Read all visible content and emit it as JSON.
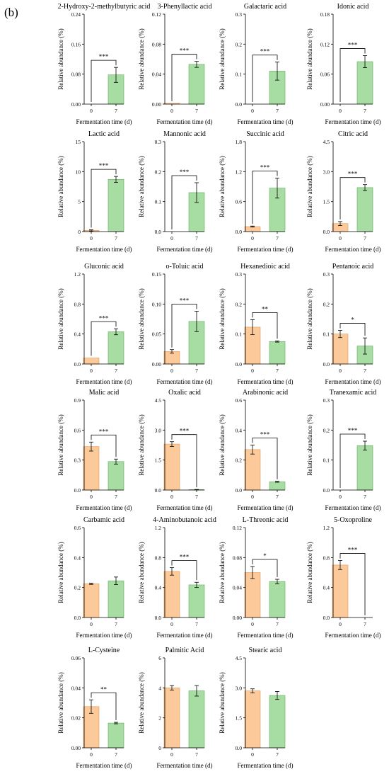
{
  "panel_label": "(b)",
  "colors": {
    "day0": "#fbc99a",
    "day7": "#a7dca3",
    "day0_edge": "#e59a59",
    "day7_edge": "#5fae5b",
    "axis": "#000000"
  },
  "chart_data": [
    {
      "type": "bar",
      "title": "2-Hydroxy-2-methylbutyric acid",
      "categories": [
        "0",
        "7"
      ],
      "values": [
        0,
        0.078
      ],
      "errors": [
        0,
        0.02
      ],
      "ylim": [
        0,
        0.24
      ],
      "yticks": [
        "0.00",
        "0.08",
        "0.16",
        "0.24"
      ],
      "significance": "***",
      "xlabel": "Fermentation time (d)",
      "ylabel": "Relative abundance (%)"
    },
    {
      "type": "bar",
      "title": "3-Phenyllactic acid",
      "categories": [
        "0",
        "7"
      ],
      "values": [
        0.001,
        0.053
      ],
      "errors": [
        0,
        0.004
      ],
      "ylim": [
        0,
        0.12
      ],
      "yticks": [
        "0.00",
        "0.04",
        "0.08",
        "0.12"
      ],
      "significance": "***",
      "xlabel": "Fermentation time (d)",
      "ylabel": "Relative abundance (%)"
    },
    {
      "type": "bar",
      "title": "Galactaric acid",
      "categories": [
        "0",
        "7"
      ],
      "values": [
        0,
        0.11
      ],
      "errors": [
        0,
        0.03
      ],
      "ylim": [
        0,
        0.3
      ],
      "yticks": [
        "0.0",
        "0.1",
        "0.2",
        "0.3"
      ],
      "significance": "***",
      "xlabel": "Fermentation time (d)",
      "ylabel": "Relative abundance (%)"
    },
    {
      "type": "bar",
      "title": "Idonic acid",
      "categories": [
        "0",
        "7"
      ],
      "values": [
        0,
        0.085
      ],
      "errors": [
        0,
        0.012
      ],
      "ylim": [
        0,
        0.18
      ],
      "yticks": [
        "0.00",
        "0.06",
        "0.12",
        "0.18"
      ],
      "significance": "***",
      "xlabel": "Fermentation time (d)",
      "ylabel": "Relative abundance (%)"
    },
    {
      "type": "bar",
      "title": "Lactic acid",
      "categories": [
        "0",
        "7"
      ],
      "values": [
        0.2,
        8.7
      ],
      "errors": [
        0.1,
        0.5
      ],
      "ylim": [
        0,
        15
      ],
      "yticks": [
        "0",
        "5",
        "10",
        "15"
      ],
      "significance": "***",
      "xlabel": "Fermentation time (d)",
      "ylabel": "Relative abundance (%)"
    },
    {
      "type": "bar",
      "title": "Mannonic acid",
      "categories": [
        "0",
        "7"
      ],
      "values": [
        0,
        0.13
      ],
      "errors": [
        0,
        0.033
      ],
      "ylim": [
        0,
        0.3
      ],
      "yticks": [
        "0.0",
        "0.1",
        "0.2",
        "0.3"
      ],
      "significance": "***",
      "xlabel": "Fermentation time (d)",
      "ylabel": "Relative abundance (%)"
    },
    {
      "type": "bar",
      "title": "Succinic acid",
      "categories": [
        "0",
        "7"
      ],
      "values": [
        0.1,
        0.87
      ],
      "errors": [
        0.01,
        0.2
      ],
      "ylim": [
        0,
        1.8
      ],
      "yticks": [
        "0.0",
        "0.6",
        "1.2",
        "1.8"
      ],
      "significance": "***",
      "xlabel": "Fermentation time (d)",
      "ylabel": "Relative abundance (%)"
    },
    {
      "type": "bar",
      "title": "Citric acid",
      "categories": [
        "0",
        "7"
      ],
      "values": [
        0.4,
        2.2
      ],
      "errors": [
        0.1,
        0.15
      ],
      "ylim": [
        0,
        4.5
      ],
      "yticks": [
        "0.0",
        "1.5",
        "3.0",
        "4.5"
      ],
      "significance": "***",
      "xlabel": "Fermentation time (d)",
      "ylabel": "Relative abundance (%)"
    },
    {
      "type": "bar",
      "title": "Gluconic acid",
      "categories": [
        "0",
        "7"
      ],
      "values": [
        0.08,
        0.43
      ],
      "errors": [
        0,
        0.04
      ],
      "ylim": [
        0,
        1.2
      ],
      "yticks": [
        "0.0",
        "0.4",
        "0.8",
        "1.2"
      ],
      "significance": "***",
      "xlabel": "Fermentation time (d)",
      "ylabel": "Relative abundance (%)"
    },
    {
      "type": "bar",
      "title": "o-Toluic acid",
      "categories": [
        "0",
        "7"
      ],
      "values": [
        0.021,
        0.071
      ],
      "errors": [
        0.003,
        0.017
      ],
      "ylim": [
        0,
        0.15
      ],
      "yticks": [
        "0.00",
        "0.05",
        "0.10",
        "0.15"
      ],
      "significance": "***",
      "xlabel": "Fermentation time (d)",
      "ylabel": "Relative abundance (%)"
    },
    {
      "type": "bar",
      "title": "Hexanedioic acid",
      "categories": [
        "0",
        "7"
      ],
      "values": [
        0.123,
        0.075
      ],
      "errors": [
        0.025,
        0.002
      ],
      "ylim": [
        0,
        0.3
      ],
      "yticks": [
        "0.0",
        "0.1",
        "0.2",
        "0.3"
      ],
      "significance": "**",
      "xlabel": "Fermentation time (d)",
      "ylabel": "Relative abundance (%)"
    },
    {
      "type": "bar",
      "title": "Pentanoic acid",
      "categories": [
        "0",
        "7"
      ],
      "values": [
        0.1,
        0.06
      ],
      "errors": [
        0.012,
        0.027
      ],
      "ylim": [
        0,
        0.3
      ],
      "yticks": [
        "0.0",
        "0.1",
        "0.2",
        "0.3"
      ],
      "significance": "*",
      "xlabel": "Fermentation time (d)",
      "ylabel": "Relative abundance (%)"
    },
    {
      "type": "bar",
      "title": "Malic acid",
      "categories": [
        "0",
        "7"
      ],
      "values": [
        0.435,
        0.285
      ],
      "errors": [
        0.045,
        0.025
      ],
      "ylim": [
        0,
        0.9
      ],
      "yticks": [
        "0.0",
        "0.3",
        "0.6",
        "0.9"
      ],
      "significance": "***",
      "xlabel": "Fermentation time (d)",
      "ylabel": "Relative abundance (%)"
    },
    {
      "type": "bar",
      "title": "Oxalic acid",
      "categories": [
        "0",
        "7"
      ],
      "values": [
        2.3,
        0.02
      ],
      "errors": [
        0.12,
        0.01
      ],
      "ylim": [
        0,
        4.5
      ],
      "yticks": [
        "0.0",
        "1.5",
        "3.0",
        "4.5"
      ],
      "significance": "***",
      "xlabel": "Fermentation time (d)",
      "ylabel": "Relative abundance (%)"
    },
    {
      "type": "bar",
      "title": "Arabinonic acid",
      "categories": [
        "0",
        "7"
      ],
      "values": [
        0.27,
        0.055
      ],
      "errors": [
        0.03,
        0.003
      ],
      "ylim": [
        0,
        0.6
      ],
      "yticks": [
        "0.0",
        "0.2",
        "0.4",
        "0.6"
      ],
      "significance": "***",
      "xlabel": "Fermentation time (d)",
      "ylabel": "Relative abundance (%)"
    },
    {
      "type": "bar",
      "title": "Tranexamic acid",
      "categories": [
        "0",
        "7"
      ],
      "values": [
        0,
        0.148
      ],
      "errors": [
        0,
        0.015
      ],
      "ylim": [
        0,
        0.3
      ],
      "yticks": [
        "0.0",
        "0.1",
        "0.2",
        "0.3"
      ],
      "significance": "***",
      "xlabel": "Fermentation time (d)",
      "ylabel": "Relative abundance (%)"
    },
    {
      "type": "bar",
      "title": "Carbamic acid",
      "categories": [
        "0",
        "7"
      ],
      "values": [
        0.225,
        0.245
      ],
      "errors": [
        0.004,
        0.025
      ],
      "ylim": [
        0,
        0.6
      ],
      "yticks": [
        "0.0",
        "0.2",
        "0.4",
        "0.6"
      ],
      "significance": "",
      "xlabel": "Fermentation time (d)",
      "ylabel": "Relative abundance (%)"
    },
    {
      "type": "bar",
      "title": "4-Aminobutanoic acid",
      "categories": [
        "0",
        "7"
      ],
      "values": [
        0.615,
        0.435
      ],
      "errors": [
        0.05,
        0.035
      ],
      "ylim": [
        0,
        1.2
      ],
      "yticks": [
        "0.0",
        "0.4",
        "0.8",
        "1.2"
      ],
      "significance": "***",
      "xlabel": "Fermentation time (d)",
      "ylabel": "Relative abundance (%)"
    },
    {
      "type": "bar",
      "title": "L-Threonic acid",
      "categories": [
        "0",
        "7"
      ],
      "values": [
        0.06,
        0.048
      ],
      "errors": [
        0.008,
        0.003
      ],
      "ylim": [
        0,
        0.12
      ],
      "yticks": [
        "0.00",
        "0.04",
        "0.08",
        "0.12"
      ],
      "significance": "*",
      "xlabel": "Fermentation time (d)",
      "ylabel": "Relative abundance (%)"
    },
    {
      "type": "bar",
      "title": "5-Oxoproline",
      "categories": [
        "0",
        "7"
      ],
      "values": [
        0.7,
        0
      ],
      "errors": [
        0.06,
        0
      ],
      "ylim": [
        0,
        1.2
      ],
      "yticks": [
        "0.0",
        "0.4",
        "0.8",
        "1.2"
      ],
      "significance": "***",
      "xlabel": "Fermentation time (d)",
      "ylabel": "Relative abundance (%)"
    },
    {
      "type": "bar",
      "title": "L-Cysteine",
      "categories": [
        "0",
        "7"
      ],
      "values": [
        0.0275,
        0.0165
      ],
      "errors": [
        0.0045,
        0.0005
      ],
      "ylim": [
        0,
        0.06
      ],
      "yticks": [
        "0.00",
        "0.02",
        "0.04",
        "0.06"
      ],
      "significance": "**",
      "xlabel": "Fermentation time (d)",
      "ylabel": "Relative abundance (%)"
    },
    {
      "type": "bar",
      "title": "Palmitic Acid",
      "categories": [
        "0",
        "7"
      ],
      "values": [
        4.0,
        3.8
      ],
      "errors": [
        0.15,
        0.35
      ],
      "ylim": [
        0,
        6
      ],
      "yticks": [
        "0",
        "2",
        "4",
        "6"
      ],
      "significance": "",
      "xlabel": "Fermentation time (d)",
      "ylabel": "Relative abundance (%)"
    },
    {
      "type": "bar",
      "title": "Stearic acid",
      "categories": [
        "0",
        "7"
      ],
      "values": [
        2.85,
        2.62
      ],
      "errors": [
        0.1,
        0.2
      ],
      "ylim": [
        0,
        4.5
      ],
      "yticks": [
        "0.0",
        "1.5",
        "3.0",
        "4.5"
      ],
      "significance": "",
      "xlabel": "Fermentation time (d)",
      "ylabel": "Relative abundance (%)"
    }
  ]
}
